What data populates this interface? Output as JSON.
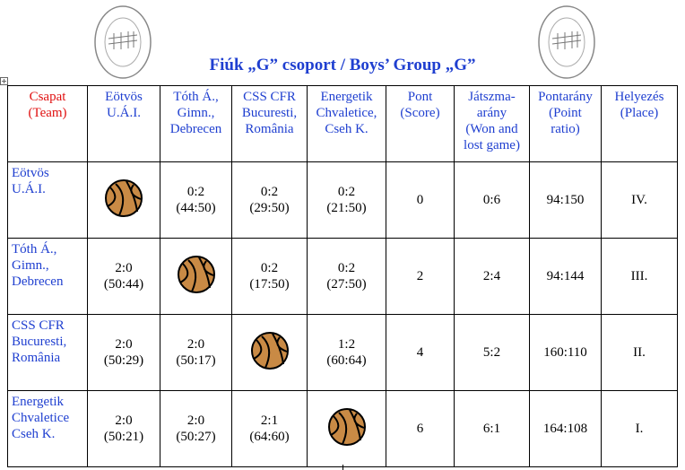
{
  "title": "Fiúk „G” csoport / Boys’ Group „G”",
  "table": {
    "header": [
      [
        "Csapat",
        "(Team)"
      ],
      [
        "Eötvös",
        "U.Á.I."
      ],
      [
        "Tóth Á.,",
        "Gimn.,",
        "Debrecen"
      ],
      [
        "CSS CFR",
        "Bucuresti,",
        "România"
      ],
      [
        "Energetik",
        "Chvaletice,",
        "Cseh K."
      ],
      [
        "Pont",
        "(Score)"
      ],
      [
        "Játszma-",
        "arány",
        "(Won and",
        "lost game)"
      ],
      [
        "Pontarány",
        "(Point",
        "ratio)"
      ],
      [
        "Helyezés",
        "(Place)"
      ]
    ],
    "rows": [
      {
        "team": [
          "Eötvös",
          "U.Á.I."
        ],
        "results": [
          null,
          [
            "0:2",
            "(44:50)"
          ],
          [
            "0:2",
            "(29:50)"
          ],
          [
            "0:2",
            "(21:50)"
          ]
        ],
        "score": 0,
        "games": "0:6",
        "ratio": "94:150",
        "place": "IV."
      },
      {
        "team": [
          "Tóth Á.,",
          "Gimn.,",
          "Debrecen"
        ],
        "results": [
          [
            "2:0",
            "(50:44)"
          ],
          null,
          [
            "0:2",
            "(17:50)"
          ],
          [
            "0:2",
            "(27:50)"
          ]
        ],
        "score": 2,
        "games": "2:4",
        "ratio": "94:144",
        "place": "III."
      },
      {
        "team": [
          "CSS CFR",
          "Bucuresti,",
          "România"
        ],
        "results": [
          [
            "2:0",
            "(50:29)"
          ],
          [
            "2:0",
            "(50:17)"
          ],
          null,
          [
            "1:2",
            "(60:64)"
          ]
        ],
        "score": 4,
        "games": "5:2",
        "ratio": "160:110",
        "place": "II."
      },
      {
        "team": [
          "Energetik",
          "Chvaletice",
          "Cseh K."
        ],
        "results": [
          [
            "2:0",
            "(50:21)"
          ],
          [
            "2:0",
            "(50:27)"
          ],
          [
            "2:1",
            "(64:60)"
          ],
          null
        ],
        "score": 6,
        "games": "6:1",
        "ratio": "164:108",
        "place": "I."
      }
    ]
  }
}
